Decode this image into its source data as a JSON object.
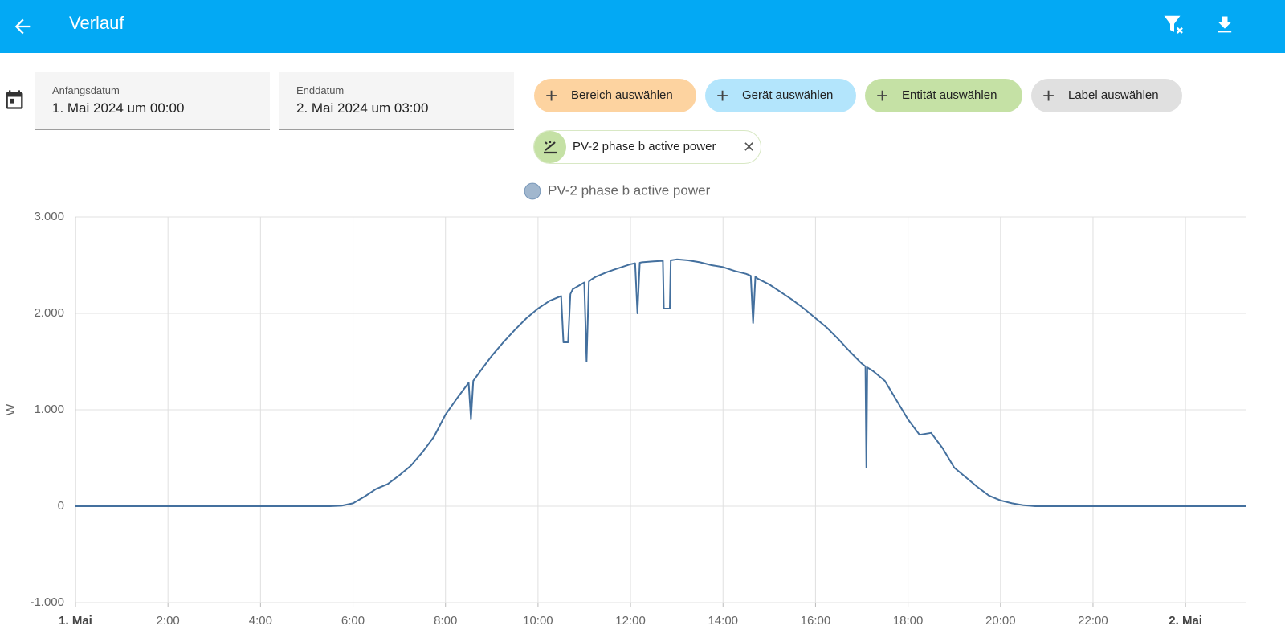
{
  "header": {
    "title": "Verlauf"
  },
  "date_range": {
    "start": {
      "label": "Anfangsdatum",
      "value": "1. Mai 2024 um 00:00"
    },
    "end": {
      "label": "Enddatum",
      "value": "2. Mai 2024 um 03:00"
    }
  },
  "target_picker": {
    "buttons": [
      "Bereich auswählen",
      "Gerät auswählen",
      "Entität auswählen",
      "Label auswählen"
    ]
  },
  "selected_entities": [
    "PV-2 phase b active power"
  ],
  "chart_data": {
    "type": "line",
    "y_label": "W",
    "x": [
      0,
      5.5,
      5.75,
      6,
      6.25,
      6.5,
      6.75,
      7,
      7.25,
      7.5,
      7.75,
      8,
      8.25,
      8.5,
      8.55,
      8.6,
      8.75,
      9,
      9.25,
      9.5,
      9.75,
      10,
      10.25,
      10.5,
      10.55,
      10.65,
      10.7,
      10.75,
      11,
      11.05,
      11.1,
      11.15,
      11.25,
      11.5,
      11.75,
      12,
      12.1,
      12.15,
      12.2,
      12.25,
      12.5,
      12.7,
      12.72,
      12.85,
      12.87,
      13,
      13.25,
      13.5,
      13.75,
      14,
      14.25,
      14.5,
      14.6,
      14.65,
      14.7,
      14.75,
      15,
      15.25,
      15.5,
      15.75,
      16,
      16.25,
      16.5,
      16.75,
      17,
      17.08,
      17.1,
      17.12,
      17.25,
      17.5,
      17.75,
      18,
      18.25,
      18.5,
      18.75,
      19,
      19.25,
      19.5,
      19.75,
      20,
      20.25,
      20.5,
      20.75,
      25.3
    ],
    "series": [
      {
        "name": "PV-2 phase b active power",
        "color": "#44709e",
        "values": [
          0,
          0,
          5,
          30,
          100,
          180,
          230,
          320,
          420,
          560,
          720,
          950,
          1120,
          1280,
          900,
          1300,
          1400,
          1560,
          1700,
          1830,
          1950,
          2050,
          2130,
          2180,
          1700,
          1700,
          2200,
          2250,
          2320,
          1500,
          2330,
          2350,
          2380,
          2430,
          2470,
          2510,
          2520,
          2000,
          2525,
          2530,
          2540,
          2545,
          2050,
          2050,
          2550,
          2560,
          2550,
          2530,
          2500,
          2480,
          2440,
          2410,
          2390,
          1900,
          2380,
          2360,
          2300,
          2220,
          2140,
          2050,
          1950,
          1850,
          1730,
          1600,
          1480,
          1450,
          400,
          1440,
          1400,
          1300,
          1100,
          900,
          740,
          760,
          600,
          400,
          300,
          200,
          110,
          60,
          30,
          10,
          0,
          0
        ]
      }
    ],
    "xlim": [
      0,
      25.3
    ],
    "xticks": [
      {
        "value": 0,
        "label": "1. Mai"
      },
      {
        "value": 2,
        "label": "2:00"
      },
      {
        "value": 4,
        "label": "4:00"
      },
      {
        "value": 6,
        "label": "6:00"
      },
      {
        "value": 8,
        "label": "8:00"
      },
      {
        "value": 10,
        "label": "10:00"
      },
      {
        "value": 12,
        "label": "12:00"
      },
      {
        "value": 14,
        "label": "14:00"
      },
      {
        "value": 16,
        "label": "16:00"
      },
      {
        "value": 18,
        "label": "18:00"
      },
      {
        "value": 20,
        "label": "20:00"
      },
      {
        "value": 22,
        "label": "22:00"
      },
      {
        "value": 24,
        "label": "2. Mai"
      }
    ],
    "ylim": [
      -1000,
      3000
    ],
    "yticks": [
      {
        "value": -1000,
        "label": "-1.000"
      },
      0,
      {
        "value": 1000,
        "label": "1.000"
      },
      {
        "value": 2000,
        "label": "2.000"
      },
      {
        "value": 3000,
        "label": "3.000"
      }
    ],
    "grid": true
  }
}
